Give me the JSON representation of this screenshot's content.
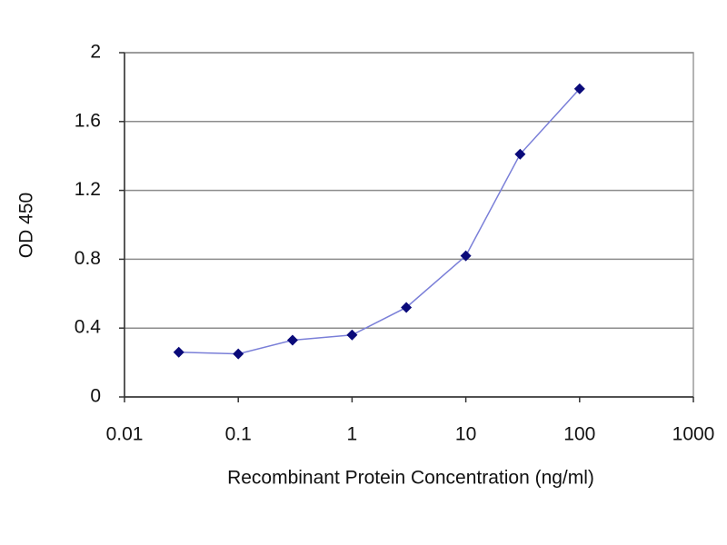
{
  "chart_data": {
    "type": "line",
    "x_label": "Recombinant Protein Concentration (ng/ml)",
    "y_label": "OD 450",
    "x": [
      0.03,
      0.1,
      0.3,
      1,
      3,
      10,
      30,
      100
    ],
    "values": [
      0.26,
      0.25,
      0.33,
      0.36,
      0.52,
      0.82,
      1.41,
      1.79
    ],
    "color": "#7a7fd8",
    "marker_color": "#0a0a7a",
    "x_log": true,
    "xlim": [
      0.01,
      1000
    ],
    "xticks": [
      0.01,
      0.1,
      1,
      10,
      100,
      1000
    ],
    "ylim": [
      0,
      2
    ],
    "yticks": [
      0,
      0.4,
      0.8,
      1.2,
      1.6,
      2
    ],
    "grid": true
  }
}
